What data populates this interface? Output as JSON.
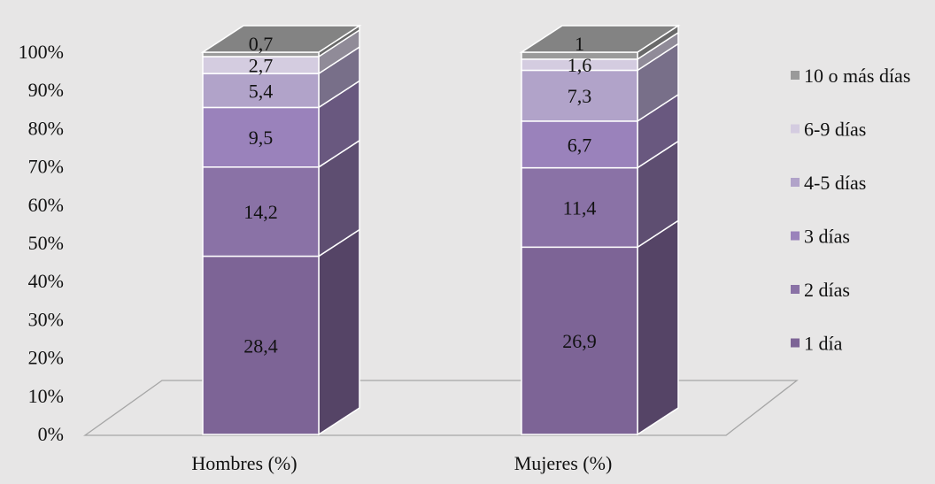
{
  "chart_data": {
    "type": "bar",
    "stacked": true,
    "normalized": true,
    "three_d": true,
    "categories": [
      "Hombres (%)",
      "Mujeres (%)"
    ],
    "series": [
      {
        "name": "1 día",
        "values": [
          28.4,
          26.9
        ],
        "labels": [
          "28,4",
          "26,9"
        ],
        "color": "#7d6496"
      },
      {
        "name": "2 días",
        "values": [
          14.2,
          11.4
        ],
        "labels": [
          "14,2",
          "11,4"
        ],
        "color": "#8a72a6"
      },
      {
        "name": "3 días",
        "values": [
          9.5,
          6.7
        ],
        "labels": [
          "9,5",
          "6,7"
        ],
        "color": "#9a82bb"
      },
      {
        "name": "4-5 días",
        "values": [
          5.4,
          7.3
        ],
        "labels": [
          "5,4",
          "7,3"
        ],
        "color": "#b1a3c9"
      },
      {
        "name": "6-9 días",
        "values": [
          2.7,
          1.6
        ],
        "labels": [
          "2,7",
          "1,6"
        ],
        "color": "#d4cce0"
      },
      {
        "name": "10 o más días",
        "values": [
          0.7,
          1
        ],
        "labels": [
          "0,7",
          "1"
        ],
        "color": "#9a9a9a"
      }
    ],
    "y_ticks": [
      "0%",
      "10%",
      "20%",
      "30%",
      "40%",
      "50%",
      "60%",
      "70%",
      "80%",
      "90%",
      "100%"
    ],
    "ylim": [
      0,
      100
    ],
    "title": "",
    "xlabel": "",
    "ylabel": "",
    "grid": false,
    "legend_position": "right"
  }
}
